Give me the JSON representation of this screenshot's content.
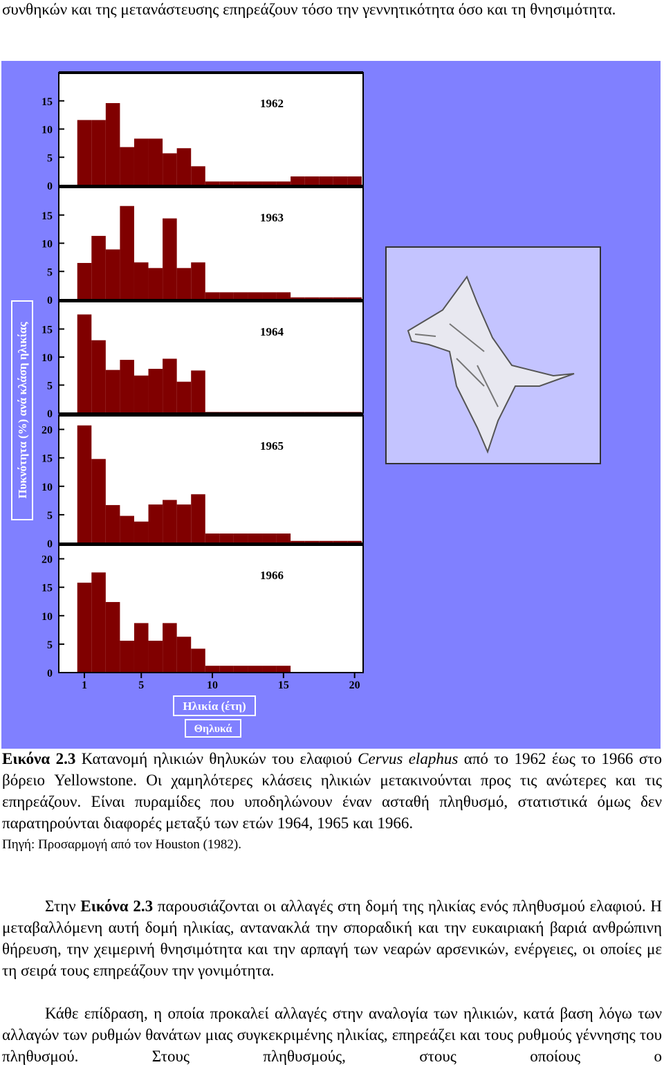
{
  "top_text": "συνθηκών και της μετανάστευσης επηρεάζουν τόσο την γεννητικότητα όσο και τη θνησιμότητα.",
  "figure": {
    "ylabel": "Πυκνότητα (%) ανά κλάση ηλικίας",
    "xlabel": "Ηλικία (έτη)",
    "legend": "Θηλυκά"
  },
  "chart_data": [
    {
      "type": "bar",
      "title": "1962",
      "color": "#800000",
      "xlim": [
        -0.8,
        20.6
      ],
      "ylim": [
        0,
        20
      ],
      "yticks": [
        0,
        5,
        10,
        15
      ],
      "x": [
        1,
        2,
        3,
        4,
        5,
        6,
        7,
        8,
        9,
        10,
        11,
        12,
        13,
        14,
        15,
        16,
        17,
        18,
        19,
        20
      ],
      "values": [
        11.6,
        11.6,
        14.6,
        6.8,
        8.3,
        8.3,
        5.7,
        6.6,
        3.4,
        0.7,
        0.7,
        0.7,
        0.7,
        0.7,
        0.7,
        1.6,
        1.6,
        1.6,
        1.6,
        1.6
      ]
    },
    {
      "type": "bar",
      "title": "1963",
      "color": "#800000",
      "xlim": [
        -0.8,
        20.6
      ],
      "ylim": [
        0,
        20
      ],
      "yticks": [
        0,
        5,
        10,
        15
      ],
      "x": [
        1,
        2,
        3,
        4,
        5,
        6,
        7,
        8,
        9,
        10,
        11,
        12,
        13,
        14,
        15,
        16,
        17,
        18,
        19,
        20
      ],
      "values": [
        6.5,
        11.3,
        8.9,
        16.6,
        6.6,
        5.6,
        14.4,
        5.6,
        6.6,
        1.3,
        1.3,
        1.3,
        1.3,
        1.3,
        1.3,
        0.4,
        0.4,
        0.4,
        0.4,
        0.4
      ]
    },
    {
      "type": "bar",
      "title": "1964",
      "color": "#800000",
      "xlim": [
        -0.8,
        20.6
      ],
      "ylim": [
        0,
        20
      ],
      "yticks": [
        0,
        5,
        10,
        15
      ],
      "x": [
        1,
        2,
        3,
        4,
        5,
        6,
        7,
        8,
        9,
        10,
        11,
        12,
        13,
        14,
        15,
        16,
        17,
        18,
        19,
        20
      ],
      "values": [
        17.6,
        13,
        7.7,
        9.5,
        6.7,
        7.9,
        9.7,
        5.6,
        7.6,
        0.2,
        0.2,
        0.2,
        0.2,
        0.2,
        0.2,
        0.2,
        0.2,
        0.2,
        0.2,
        0.2
      ]
    },
    {
      "type": "bar",
      "title": "1965",
      "color": "#800000",
      "xlim": [
        -0.8,
        20.6
      ],
      "ylim": [
        0,
        22.5
      ],
      "yticks": [
        0,
        5,
        10,
        15,
        20
      ],
      "x": [
        1,
        2,
        3,
        4,
        5,
        6,
        7,
        8,
        9,
        10,
        11,
        12,
        13,
        14,
        15,
        16,
        17,
        18,
        19,
        20
      ],
      "values": [
        20.7,
        14.8,
        6.7,
        4.8,
        3.8,
        6.8,
        7.6,
        6.8,
        8.6,
        1.7,
        1.7,
        1.7,
        1.7,
        1.7,
        1.7,
        0.4,
        0.4,
        0.4,
        0.4,
        0.4
      ]
    },
    {
      "type": "bar",
      "title": "1966",
      "color": "#800000",
      "xlim": [
        -0.8,
        20.6
      ],
      "ylim": [
        0,
        22.5
      ],
      "yticks": [
        0,
        5,
        10,
        15,
        20
      ],
      "xticks": [
        1,
        5,
        10,
        15,
        20
      ],
      "x": [
        1,
        2,
        3,
        4,
        5,
        6,
        7,
        8,
        9,
        10,
        11,
        12,
        13,
        14,
        15,
        16,
        17,
        18,
        19,
        20
      ],
      "values": [
        15.8,
        17.6,
        12.4,
        5.6,
        8.7,
        5.6,
        8.7,
        6.3,
        4.2,
        1.2,
        1.2,
        1.2,
        1.2,
        1.2,
        1.2,
        0,
        0,
        0,
        0,
        0
      ]
    }
  ],
  "caption": {
    "label": "Εικόνα 2.3",
    "text1": " Κατανομή ηλικιών θηλυκών του ελαφιού ",
    "species": "Cervus elaphus",
    "text2": " από το 1962 έως το 1966 στο βόρειο Yellowstone. Οι χαμηλότερες κλάσεις ηλικιών μετακινούνται προς τις ανώτερες και τις επηρεάζουν. Είναι πυραμίδες που υποδηλώνουν έναν ασταθή πληθυσμό, στατιστικά όμως δεν παρατηρούνται διαφορές μεταξύ των ετών 1964, 1965 και 1966.",
    "source": "Πηγή: Προσαρμογή από τον Houston (1982)."
  },
  "paragraphs": [
    {
      "before": "Στην ",
      "ref": "Εικόνα 2.3",
      "after": " παρουσιάζονται οι αλλαγές στη δομή της ηλικίας ενός πληθυσμού ελαφιού. Η μεταβαλλόμενη αυτή δομή ηλικίας, αντανακλά την σποραδική και την ευκαιριακή βαριά ανθρώπινη θήρευση, την χειμερινή θνησιμότητα και την αρπαγή των νεαρών αρσενικών, ενέργειες, οι οποίες με τη σειρά τους επηρεάζουν την γονιμότητα."
    },
    {
      "text": "Κάθε επίδραση, η οποία προκαλεί αλλαγές στην αναλογία των ηλικιών, κατά βαση λόγω των αλλαγών των ρυθμών θανάτων μιας συγκεκριμένης ηλικίας, επηρεάζει και τους ρυθμούς γέννησης του πληθυσμού. Στους πληθυσμούς, στους οποίους ο"
    }
  ]
}
